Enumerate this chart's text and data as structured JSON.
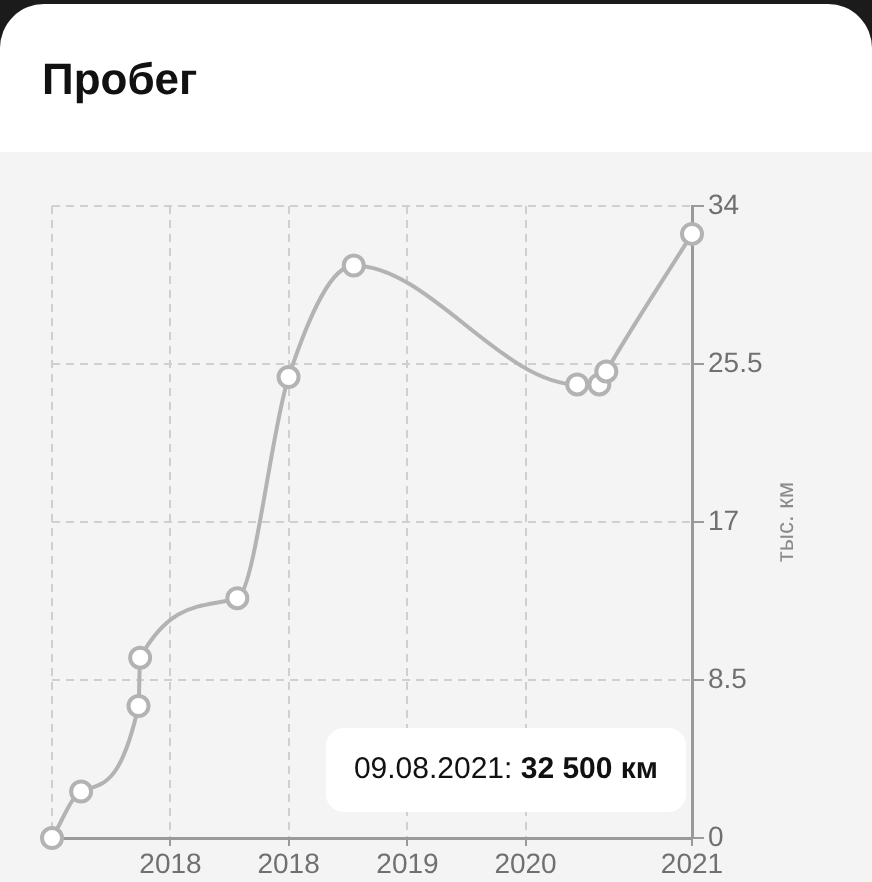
{
  "chart_data": {
    "type": "line",
    "title": "Пробег",
    "ylabel": "тыс. км",
    "x": [
      "2017-05-01",
      "2017-07-11",
      "2017-11-28",
      "2017-12-02",
      "2018-07-27",
      "2018-11-29",
      "2019-05-07",
      "2020-11-02",
      "2020-12-26",
      "2021-01-12",
      "2021-08-09"
    ],
    "values": [
      0,
      2.5,
      7.1,
      9.7,
      12.9,
      24.8,
      30.8,
      24.4,
      24.4,
      25.1,
      32.5
    ],
    "color": "#b3b3b3",
    "marker": "circle",
    "line_style": "solid",
    "xlim": [
      "2017-05-01",
      "2021-08-09"
    ],
    "xticks": [
      {
        "value": "2017-05-01",
        "label": null
      },
      {
        "value": "2018-02-14",
        "label": "2018"
      },
      {
        "value": "2018-11-29",
        "label": "2018"
      },
      {
        "value": "2019-09-15",
        "label": "2019"
      },
      {
        "value": "2020-06-29",
        "label": "2020"
      },
      {
        "value": "2021-08-09",
        "label": "2021"
      }
    ],
    "ylim": [
      0,
      34
    ],
    "yticks": [
      0,
      8.5,
      17,
      25.5,
      34
    ],
    "grid": true,
    "annotations": [
      "09.08.2021: 32 500 км"
    ]
  }
}
